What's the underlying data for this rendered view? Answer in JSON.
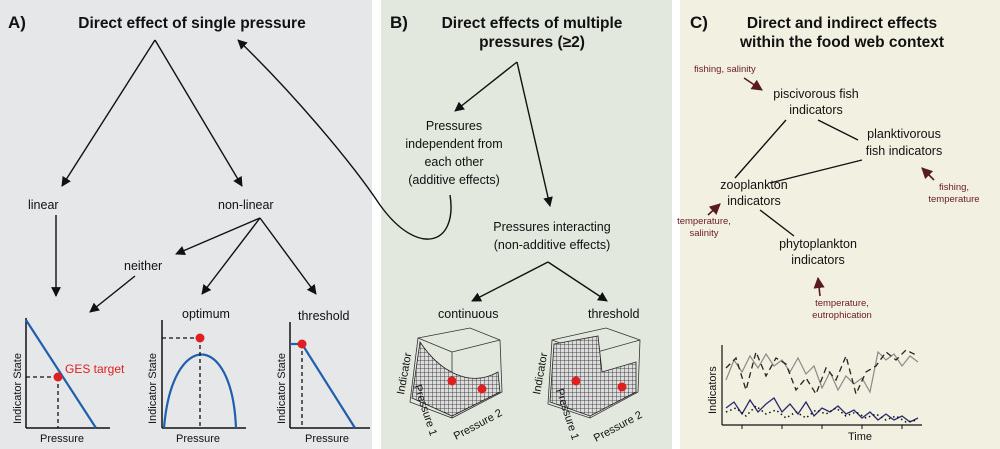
{
  "colors": {
    "panel_a_bg": "#e6e7e8",
    "panel_b_bg": "#e2e8dd",
    "panel_c_bg": "#f2f1e1",
    "curve": "#1f5fae",
    "target_dot": "#e02020",
    "driver_arrow": "#5a1a22",
    "dark_series": "#2a2a6e"
  },
  "panel_a": {
    "label": "A)",
    "title": "Direct effect of single pressure",
    "linear": "linear",
    "nonlinear": "non-linear",
    "neither": "neither",
    "optimum": "optimum",
    "threshold": "threshold",
    "ges_target": "GES target",
    "y_axis": "Indicator State",
    "x_axis": "Pressure"
  },
  "panel_b": {
    "label": "B)",
    "title_line1": "Direct effects of multiple",
    "title_line2": "pressures (≥2)",
    "independent": [
      "Pressures",
      "independent from",
      "each other",
      "(additive effects)"
    ],
    "interacting": [
      "Pressures interacting",
      "(non-additive effects)"
    ],
    "continuous": "continuous",
    "threshold": "threshold",
    "surface_z": "Indicator",
    "surface_p1": "Pressure 1",
    "surface_p2": "Pressure 2"
  },
  "panel_c": {
    "label": "C)",
    "title_line1": "Direct and indirect effects",
    "title_line2": "within the food web context",
    "piscivorous": [
      "piscivorous fish",
      "indicators"
    ],
    "planktivorous": [
      "planktivorous",
      "fish indicators"
    ],
    "zooplankton": [
      "zooplankton",
      "indicators"
    ],
    "phytoplankton": [
      "phytoplankton",
      "indicators"
    ],
    "driver_pisc": "fishing, salinity",
    "driver_plank": [
      "fishing,",
      "temperature"
    ],
    "driver_zoo": [
      "temperature,",
      "salinity"
    ],
    "driver_phyto": [
      "temperature,",
      "eutrophication"
    ],
    "ts_y": "Indicators",
    "ts_x": "Time"
  }
}
